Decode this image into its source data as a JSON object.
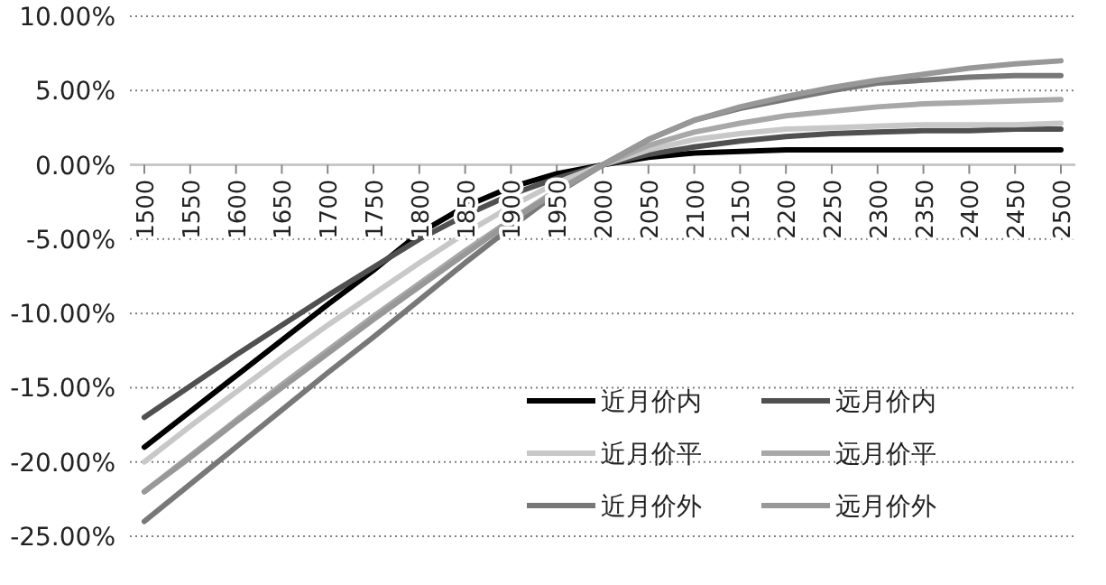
{
  "chart_data": {
    "type": "line",
    "categories": [
      "1500",
      "1550",
      "1600",
      "1650",
      "1700",
      "1750",
      "1800",
      "1850",
      "1900",
      "1950",
      "2000",
      "2050",
      "2100",
      "2150",
      "2200",
      "2250",
      "2300",
      "2350",
      "2400",
      "2450",
      "2500"
    ],
    "series": [
      {
        "name": "近月价内",
        "color": "#000000",
        "values": [
          -19,
          -16.6,
          -14.2,
          -11.8,
          -9.4,
          -7.1,
          -4.6,
          -2.8,
          -1.5,
          -0.6,
          0,
          0.5,
          0.8,
          0.9,
          1.0,
          1.0,
          1.0,
          1.0,
          1.0,
          1.0,
          1.0
        ]
      },
      {
        "name": "远月价内",
        "color": "#505050",
        "values": [
          -17,
          -14.9,
          -12.8,
          -10.8,
          -8.8,
          -6.9,
          -5.0,
          -3.4,
          -2.0,
          -0.9,
          0,
          0.7,
          1.2,
          1.6,
          1.9,
          2.1,
          2.2,
          2.3,
          2.3,
          2.4,
          2.4
        ]
      },
      {
        "name": "近月价平",
        "color": "#c8c8c8",
        "values": [
          -20,
          -17.6,
          -15.3,
          -13.0,
          -10.8,
          -8.7,
          -6.6,
          -4.6,
          -2.8,
          -1.2,
          0,
          1.0,
          1.7,
          2.1,
          2.4,
          2.5,
          2.6,
          2.7,
          2.7,
          2.7,
          2.8
        ]
      },
      {
        "name": "远月价平",
        "color": "#a8a8a8",
        "values": [
          -22,
          -19.6,
          -17.2,
          -14.8,
          -12.5,
          -10.2,
          -8.0,
          -5.8,
          -3.7,
          -1.7,
          0,
          1.3,
          2.2,
          2.8,
          3.3,
          3.6,
          3.9,
          4.1,
          4.2,
          4.3,
          4.4
        ]
      },
      {
        "name": "近月价外",
        "color": "#787878",
        "values": [
          -24,
          -21.5,
          -19.0,
          -16.5,
          -14.0,
          -11.6,
          -9.1,
          -6.6,
          -4.2,
          -1.9,
          0,
          1.7,
          3.0,
          3.8,
          4.4,
          5.0,
          5.5,
          5.7,
          5.9,
          6.0,
          6.0
        ]
      },
      {
        "name": "远月价外",
        "color": "#989898",
        "values": [
          -22,
          -19.7,
          -17.3,
          -15.0,
          -12.7,
          -10.4,
          -8.2,
          -6.0,
          -3.8,
          -1.8,
          0,
          1.7,
          3.0,
          3.9,
          4.6,
          5.2,
          5.7,
          6.1,
          6.5,
          6.8,
          7.0
        ]
      }
    ],
    "ylim": [
      -25,
      10
    ],
    "yticks": [
      {
        "value": 10,
        "label": "10.00%"
      },
      {
        "value": 5,
        "label": "5.00%"
      },
      {
        "value": 0,
        "label": "0.00%"
      },
      {
        "value": -5,
        "label": "-5.00%"
      },
      {
        "value": -10,
        "label": "-10.00%"
      },
      {
        "value": -15,
        "label": "-15.00%"
      },
      {
        "value": -20,
        "label": "-20.00%"
      },
      {
        "value": -25,
        "label": "-25.00%"
      }
    ],
    "grid": "y",
    "legend": "bottom right",
    "marker": "none",
    "line_style": "solid"
  }
}
